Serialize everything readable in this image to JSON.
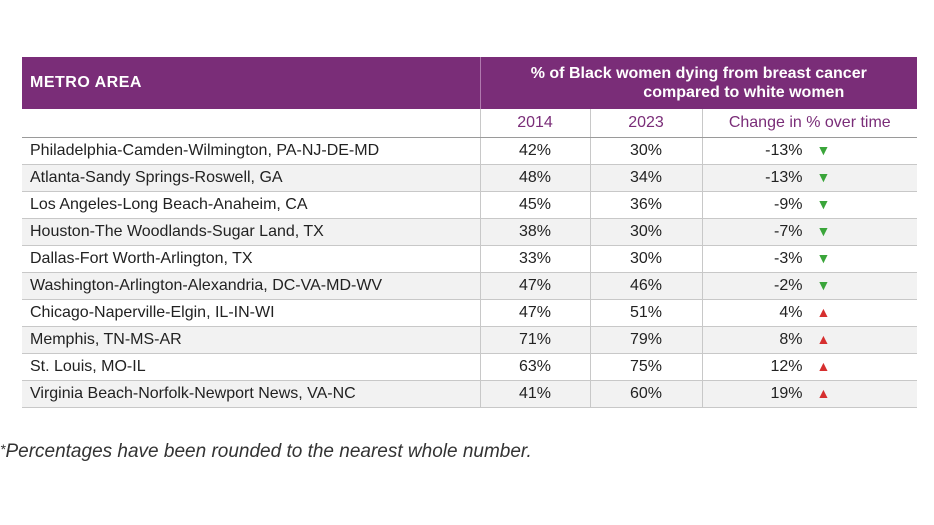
{
  "header": {
    "metro_label": "METRO AREA",
    "pct_line1": "% of Black women dying from breast cancer",
    "pct_line2": "compared to white women"
  },
  "subheader": {
    "col_2014": "2014",
    "col_2023": "2023",
    "col_change": "Change in % over time"
  },
  "rows": [
    {
      "area": "Philadelphia-Camden-Wilmington, PA-NJ-DE-MD",
      "y2014": "42%",
      "y2023": "30%",
      "change": "-13%",
      "direction": "down"
    },
    {
      "area": "Atlanta-Sandy Springs-Roswell, GA",
      "y2014": "48%",
      "y2023": "34%",
      "change": "-13%",
      "direction": "down"
    },
    {
      "area": "Los Angeles-Long Beach-Anaheim, CA",
      "y2014": "45%",
      "y2023": "36%",
      "change": "-9%",
      "direction": "down"
    },
    {
      "area": "Houston-The Woodlands-Sugar Land, TX",
      "y2014": "38%",
      "y2023": "30%",
      "change": "-7%",
      "direction": "down"
    },
    {
      "area": "Dallas-Fort Worth-Arlington, TX",
      "y2014": "33%",
      "y2023": "30%",
      "change": "-3%",
      "direction": "down"
    },
    {
      "area": "Washington-Arlington-Alexandria, DC-VA-MD-WV",
      "y2014": "47%",
      "y2023": "46%",
      "change": "-2%",
      "direction": "down"
    },
    {
      "area": "Chicago-Naperville-Elgin, IL-IN-WI",
      "y2014": "47%",
      "y2023": "51%",
      "change": "4%",
      "direction": "up"
    },
    {
      "area": "Memphis, TN-MS-AR",
      "y2014": "71%",
      "y2023": "79%",
      "change": "8%",
      "direction": "up"
    },
    {
      "area": "St. Louis, MO-IL",
      "y2014": "63%",
      "y2023": "75%",
      "change": "12%",
      "direction": "up"
    },
    {
      "area": "Virginia Beach-Norfolk-Newport News, VA-NC",
      "y2014": "41%",
      "y2023": "60%",
      "change": "19%",
      "direction": "up"
    }
  ],
  "footnote": {
    "star": "*",
    "text": "Percentages have been rounded to the nearest whole number."
  },
  "colors": {
    "header_bg": "#7a2d78",
    "arrow_down": "#3aa53a",
    "arrow_up": "#d62f2f"
  },
  "icons": {
    "down": "down-triangle-icon",
    "up": "up-triangle-icon"
  }
}
